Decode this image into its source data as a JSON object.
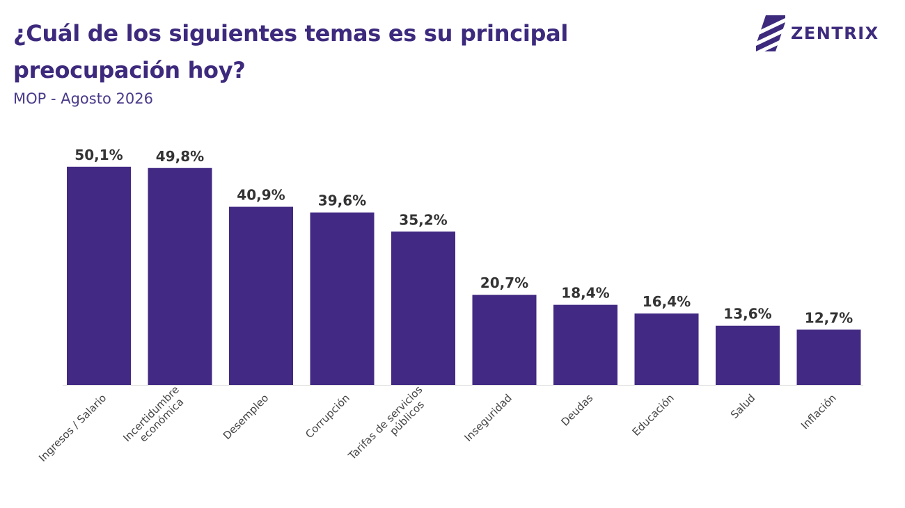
{
  "header": {
    "title": "¿Cuál de los siguientes temas es su principal preocupación hoy?",
    "subtitle": "MOP - Agosto 2026"
  },
  "logo": {
    "text": "ZENTRIX",
    "icon": "zentrix-stripes-icon",
    "color": "#3d2a7d"
  },
  "chart_data": {
    "type": "bar",
    "categories": [
      [
        "Ingresos / Salario"
      ],
      [
        "Incertidumbre",
        "económica"
      ],
      [
        "Desempleo"
      ],
      [
        "Corrupción"
      ],
      [
        "Tarifas de servicios",
        "públicos"
      ],
      [
        "Inseguridad"
      ],
      [
        "Deudas"
      ],
      [
        "Educación"
      ],
      [
        "Salud"
      ],
      [
        "Inflación"
      ]
    ],
    "values": [
      50.1,
      49.8,
      40.9,
      39.6,
      35.2,
      20.7,
      18.4,
      16.4,
      13.6,
      12.7
    ],
    "value_labels": [
      "50,1%",
      "49,8%",
      "40,9%",
      "39,6%",
      "35,2%",
      "20,7%",
      "18,4%",
      "16,4%",
      "13,6%",
      "12,7%"
    ],
    "ylim": [
      0,
      55
    ],
    "bar_color": "#422983",
    "grid": false,
    "legend": "none"
  }
}
